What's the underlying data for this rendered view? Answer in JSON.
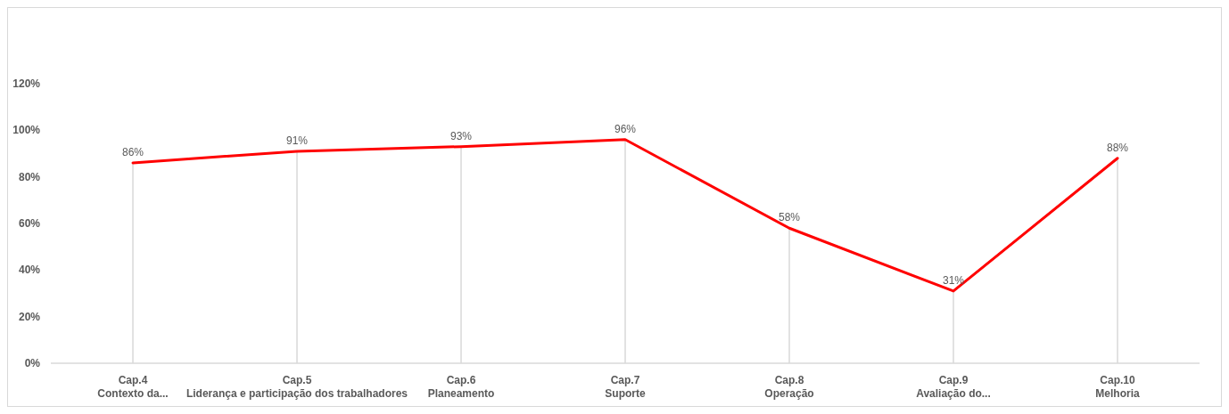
{
  "chart_data": {
    "type": "line",
    "categories": [
      "Cap.4\nContexto da...",
      "Cap.5\nLiderança e participação dos trabalhadores",
      "Cap.6\nPlaneamento",
      "Cap.7\nSuporte",
      "Cap.8\nOperação",
      "Cap.9\nAvaliação do...",
      "Cap.10\nMelhoria"
    ],
    "series": [
      {
        "color": "#ff0000",
        "values": [
          86,
          91,
          93,
          96,
          58,
          31,
          88
        ]
      }
    ],
    "value_labels": [
      "86%",
      "91%",
      "93%",
      "96%",
      "58%",
      "31%",
      "88%"
    ],
    "ylim": [
      0,
      120
    ],
    "yticks": [
      {
        "value": 0,
        "label": "0%"
      },
      {
        "value": 20,
        "label": "20%"
      },
      {
        "value": 40,
        "label": "40%"
      },
      {
        "value": 60,
        "label": "60%"
      },
      {
        "value": 80,
        "label": "80%"
      },
      {
        "value": 100,
        "label": "100%"
      },
      {
        "value": 120,
        "label": "120%"
      }
    ],
    "grid": "x",
    "marker": "none",
    "line_style": "solid"
  }
}
